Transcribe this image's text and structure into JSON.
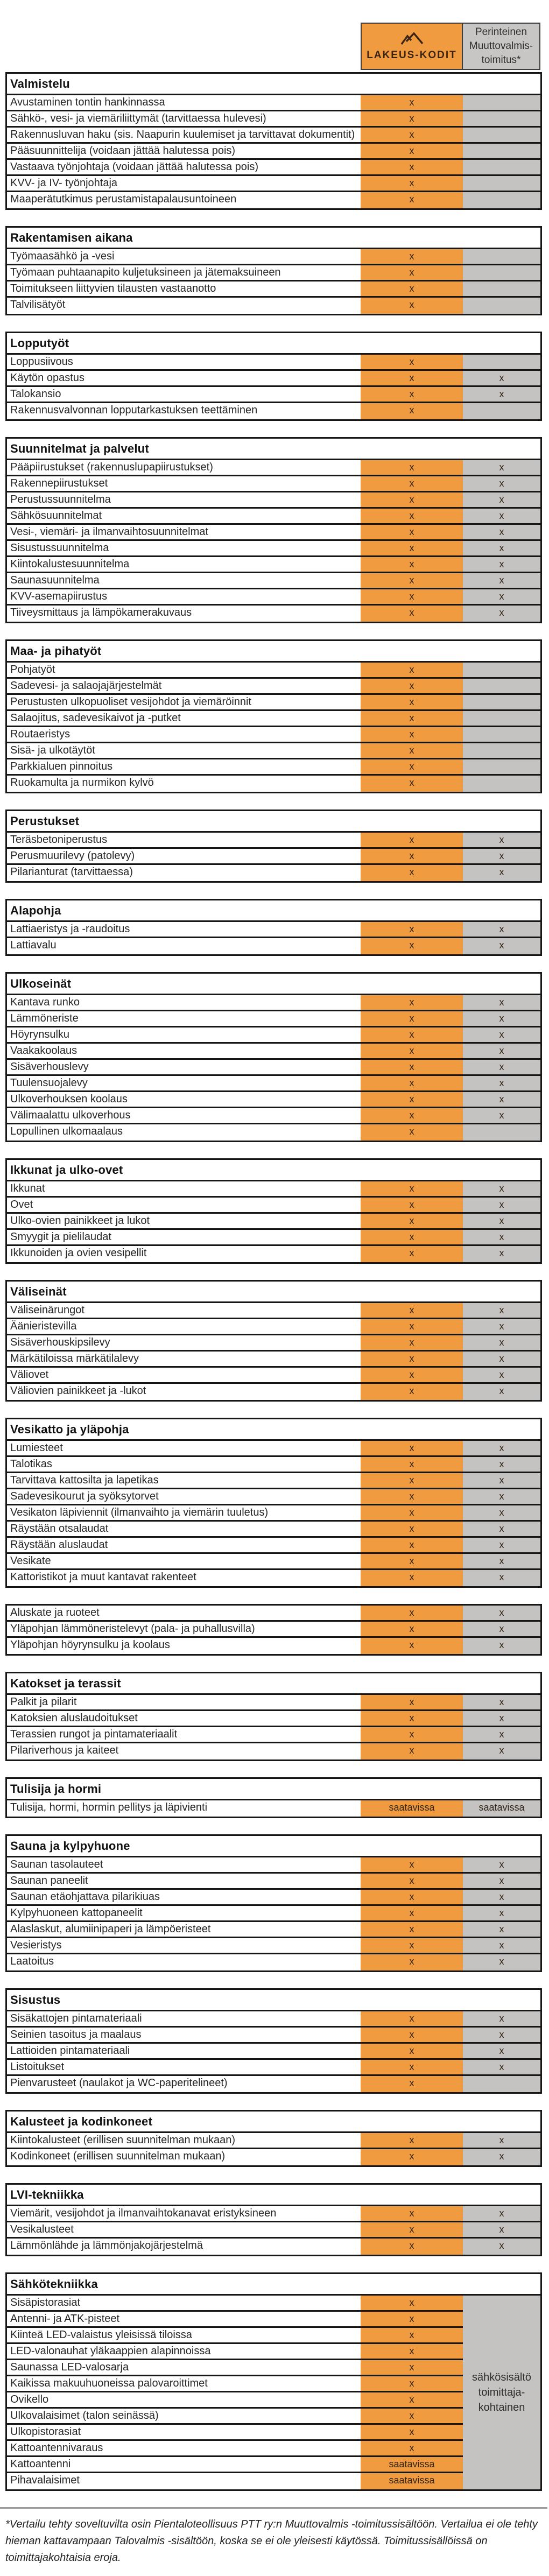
{
  "columns": {
    "brand": {
      "label": "LAKEUS-KODIT",
      "icon": "mountain-logo"
    },
    "traditional": {
      "label": "Perinteinen\nMuuttovalmis-\ntoimitus*"
    }
  },
  "legend": {
    "included_mark": "x",
    "available_mark": "saatavissa"
  },
  "colors": {
    "orange": "#F09B40",
    "gray": "#C4C3C1",
    "border": "#161616",
    "logo_brown": "#3A2414"
  },
  "electrical_note": "sähkösisältö\ntoimittaja-\nkohtainen",
  "footnote": "*Vertailu tehty soveltuvilta osin Pientaloteollisuus PTT ry:n Muuttovalmis -toimitussisältöön. Vertailua ei ole tehty hieman kattavampaan Talovalmis -sisältöön, koska se ei ole yleisesti käytössä. Toimitussisällöissä on toimittajakohtaisia eroja.",
  "sections": [
    {
      "title": "Valmistelu",
      "rows": [
        {
          "label": "Avustaminen tontin hankinnassa",
          "lakeus": "x",
          "perinteinen": ""
        },
        {
          "label": "Sähkö-, vesi- ja viemäriliittymät (tarvittaessa hulevesi)",
          "lakeus": "x",
          "perinteinen": ""
        },
        {
          "label": "Rakennusluvan haku (sis. Naapurin kuulemiset ja tarvittavat dokumentit)",
          "lakeus": "x",
          "perinteinen": ""
        },
        {
          "label": "Pääsuunnittelija (voidaan jättää halutessa pois)",
          "lakeus": "x",
          "perinteinen": ""
        },
        {
          "label": "Vastaava työnjohtaja (voidaan jättää halutessa pois)",
          "lakeus": "x",
          "perinteinen": ""
        },
        {
          "label": "KVV- ja IV- työnjohtaja",
          "lakeus": "x",
          "perinteinen": ""
        },
        {
          "label": "Maaperätutkimus perustamistapalausuntoineen",
          "lakeus": "x",
          "perinteinen": ""
        }
      ]
    },
    {
      "title": "Rakentamisen aikana",
      "rows": [
        {
          "label": "Työmaasähkö ja -vesi",
          "lakeus": "x",
          "perinteinen": ""
        },
        {
          "label": "Työmaan puhtaanapito kuljetuksineen ja jätemaksuineen",
          "lakeus": "x",
          "perinteinen": ""
        },
        {
          "label": "Toimitukseen liittyvien tilausten vastaanotto",
          "lakeus": "x",
          "perinteinen": ""
        },
        {
          "label": "Talvilisätyöt",
          "lakeus": "x",
          "perinteinen": ""
        }
      ]
    },
    {
      "title": "Lopputyöt",
      "rows": [
        {
          "label": "Loppusiivous",
          "lakeus": "x",
          "perinteinen": ""
        },
        {
          "label": "Käytön opastus",
          "lakeus": "x",
          "perinteinen": "x"
        },
        {
          "label": "Talokansio",
          "lakeus": "x",
          "perinteinen": "x"
        },
        {
          "label": "Rakennusvalvonnan lopputarkastuksen teettäminen",
          "lakeus": "x",
          "perinteinen": ""
        }
      ]
    },
    {
      "title": "Suunnitelmat ja palvelut",
      "rows": [
        {
          "label": "Pääpiirustukset (rakennuslupapiirustukset)",
          "lakeus": "x",
          "perinteinen": "x"
        },
        {
          "label": "Rakennepiirustukset",
          "lakeus": "x",
          "perinteinen": "x"
        },
        {
          "label": "Perustussuunnitelma",
          "lakeus": "x",
          "perinteinen": "x"
        },
        {
          "label": "Sähkösuunnitelmat",
          "lakeus": "x",
          "perinteinen": "x"
        },
        {
          "label": "Vesi-, viemäri- ja ilmanvaihtosuunnitelmat",
          "lakeus": "x",
          "perinteinen": "x"
        },
        {
          "label": "Sisustussuunnitelma",
          "lakeus": "x",
          "perinteinen": "x"
        },
        {
          "label": "Kiintokalustesuunnitelma",
          "lakeus": "x",
          "perinteinen": "x"
        },
        {
          "label": "Saunasuunnitelma",
          "lakeus": "x",
          "perinteinen": "x"
        },
        {
          "label": "KVV-asemapiirustus",
          "lakeus": "x",
          "perinteinen": "x"
        },
        {
          "label": "Tiiveysmittaus ja lämpökamerakuvaus",
          "lakeus": "x",
          "perinteinen": "x"
        }
      ]
    },
    {
      "title": "Maa- ja pihatyöt",
      "rows": [
        {
          "label": "Pohjatyöt",
          "lakeus": "x",
          "perinteinen": ""
        },
        {
          "label": "Sadevesi- ja salaojajärjestelmät",
          "lakeus": "x",
          "perinteinen": ""
        },
        {
          "label": "Perustusten ulkopuoliset vesijohdot ja viemäröinnit",
          "lakeus": "x",
          "perinteinen": ""
        },
        {
          "label": "Salaojitus, sadevesikaivot ja -putket",
          "lakeus": "x",
          "perinteinen": ""
        },
        {
          "label": "Routaeristys",
          "lakeus": "x",
          "perinteinen": ""
        },
        {
          "label": "Sisä- ja ulkotäytöt",
          "lakeus": "x",
          "perinteinen": ""
        },
        {
          "label": "Parkkialuen pinnoitus",
          "lakeus": "x",
          "perinteinen": ""
        },
        {
          "label": "Ruokamulta ja nurmikon kylvö",
          "lakeus": "x",
          "perinteinen": ""
        }
      ]
    },
    {
      "title": "Perustukset",
      "rows": [
        {
          "label": "Teräsbetoniperustus",
          "lakeus": "x",
          "perinteinen": "x"
        },
        {
          "label": "Perusmuurilevy (patolevy)",
          "lakeus": "x",
          "perinteinen": "x"
        },
        {
          "label": "Pilarianturat (tarvittaessa)",
          "lakeus": "x",
          "perinteinen": "x"
        }
      ]
    },
    {
      "title": "Alapohja",
      "rows": [
        {
          "label": "Lattiaeristys ja -raudoitus",
          "lakeus": "x",
          "perinteinen": "x"
        },
        {
          "label": "Lattiavalu",
          "lakeus": "x",
          "perinteinen": "x"
        }
      ]
    },
    {
      "title": "Ulkoseinät",
      "rows": [
        {
          "label": "Kantava runko",
          "lakeus": "x",
          "perinteinen": "x"
        },
        {
          "label": "Lämmöneriste",
          "lakeus": "x",
          "perinteinen": "x"
        },
        {
          "label": "Höyrynsulku",
          "lakeus": "x",
          "perinteinen": "x"
        },
        {
          "label": "Vaakakoolaus",
          "lakeus": "x",
          "perinteinen": "x"
        },
        {
          "label": "Sisäverhouslevy",
          "lakeus": "x",
          "perinteinen": "x"
        },
        {
          "label": "Tuulensuojalevy",
          "lakeus": "x",
          "perinteinen": "x"
        },
        {
          "label": "Ulkoverhouksen koolaus",
          "lakeus": "x",
          "perinteinen": "x"
        },
        {
          "label": "Välimaalattu ulkoverhous",
          "lakeus": "x",
          "perinteinen": "x"
        },
        {
          "label": "Lopullinen ulkomaalaus",
          "lakeus": "x",
          "perinteinen": ""
        }
      ]
    },
    {
      "title": "Ikkunat ja ulko-ovet",
      "rows": [
        {
          "label": "Ikkunat",
          "lakeus": "x",
          "perinteinen": "x"
        },
        {
          "label": "Ovet",
          "lakeus": "x",
          "perinteinen": "x"
        },
        {
          "label": "Ulko-ovien painikkeet ja lukot",
          "lakeus": "x",
          "perinteinen": "x"
        },
        {
          "label": "Smyygit ja pielilaudat",
          "lakeus": "x",
          "perinteinen": "x"
        },
        {
          "label": "Ikkunoiden ja ovien vesipellit",
          "lakeus": "x",
          "perinteinen": "x"
        }
      ]
    },
    {
      "title": "Väliseinät",
      "rows": [
        {
          "label": "Väliseinärungot",
          "lakeus": "x",
          "perinteinen": "x"
        },
        {
          "label": "Äänieristevilla",
          "lakeus": "x",
          "perinteinen": "x"
        },
        {
          "label": "Sisäverhouskipsilevy",
          "lakeus": "x",
          "perinteinen": "x"
        },
        {
          "label": "Märkätiloissa märkätilalevy",
          "lakeus": "x",
          "perinteinen": "x"
        },
        {
          "label": "Väliovet",
          "lakeus": "x",
          "perinteinen": "x"
        },
        {
          "label": "Väliovien painikkeet ja -lukot",
          "lakeus": "x",
          "perinteinen": "x"
        }
      ]
    },
    {
      "title": "Vesikatto ja yläpohja",
      "rows": [
        {
          "label": "Lumiesteet",
          "lakeus": "x",
          "perinteinen": "x"
        },
        {
          "label": "Talotikas",
          "lakeus": "x",
          "perinteinen": "x"
        },
        {
          "label": "Tarvittava kattosilta ja lapetikas",
          "lakeus": "x",
          "perinteinen": "x"
        },
        {
          "label": "Sadevesikourut ja syöksytorvet",
          "lakeus": "x",
          "perinteinen": "x"
        },
        {
          "label": "Vesikaton läpiviennit (ilmanvaihto ja viemärin tuuletus)",
          "lakeus": "x",
          "perinteinen": "x"
        },
        {
          "label": "Räystään otsalaudat",
          "lakeus": "x",
          "perinteinen": "x"
        },
        {
          "label": "Räystään aluslaudat",
          "lakeus": "x",
          "perinteinen": "x"
        },
        {
          "label": "Vesikate",
          "lakeus": "x",
          "perinteinen": "x"
        },
        {
          "label": "Kattoristikot ja muut kantavat rakenteet",
          "lakeus": "x",
          "perinteinen": "x"
        }
      ]
    },
    {
      "title": null,
      "rows": [
        {
          "label": "Aluskate ja ruoteet",
          "lakeus": "x",
          "perinteinen": "x"
        },
        {
          "label": "Yläpohjan lämmöneristelevyt (pala- ja puhallusvilla)",
          "lakeus": "x",
          "perinteinen": "x"
        },
        {
          "label": "Yläpohjan höyrynsulku ja koolaus",
          "lakeus": "x",
          "perinteinen": "x"
        }
      ]
    },
    {
      "title": "Katokset ja terassit",
      "rows": [
        {
          "label": "Palkit ja pilarit",
          "lakeus": "x",
          "perinteinen": "x"
        },
        {
          "label": "Katoksien aluslaudoitukset",
          "lakeus": "x",
          "perinteinen": "x"
        },
        {
          "label": "Terassien rungot ja pintamateriaalit",
          "lakeus": "x",
          "perinteinen": "x"
        },
        {
          "label": "Pilariverhous ja kaiteet",
          "lakeus": "x",
          "perinteinen": "x"
        }
      ]
    },
    {
      "title": "Tulisija ja hormi",
      "rows": [
        {
          "label": "Tulisija, hormi, hormin pellitys ja läpivienti",
          "lakeus": "saatavissa",
          "perinteinen": "saatavissa"
        }
      ]
    },
    {
      "title": "Sauna ja kylpyhuone",
      "rows": [
        {
          "label": "Saunan tasolauteet",
          "lakeus": "x",
          "perinteinen": "x"
        },
        {
          "label": "Saunan paneelit",
          "lakeus": "x",
          "perinteinen": "x"
        },
        {
          "label": "Saunan etäohjattava pilarikiuas",
          "lakeus": "x",
          "perinteinen": "x"
        },
        {
          "label": "Kylpyhuoneen kattopaneelit",
          "lakeus": "x",
          "perinteinen": "x"
        },
        {
          "label": "Alaslaskut, alumiinipaperi ja lämpöeristeet",
          "lakeus": "x",
          "perinteinen": "x"
        },
        {
          "label": "Vesieristys",
          "lakeus": "x",
          "perinteinen": "x"
        },
        {
          "label": "Laatoitus",
          "lakeus": "x",
          "perinteinen": "x"
        }
      ]
    },
    {
      "title": "Sisustus",
      "rows": [
        {
          "label": "Sisäkattojen pintamateriaali",
          "lakeus": "x",
          "perinteinen": "x"
        },
        {
          "label": "Seinien tasoitus ja maalaus",
          "lakeus": "x",
          "perinteinen": "x"
        },
        {
          "label": "Lattioiden pintamateriaali",
          "lakeus": "x",
          "perinteinen": "x"
        },
        {
          "label": "Listoitukset",
          "lakeus": "x",
          "perinteinen": "x"
        },
        {
          "label": "Pienvarusteet (naulakot ja WC-paperitelineet)",
          "lakeus": "x",
          "perinteinen": ""
        }
      ]
    },
    {
      "title": "Kalusteet ja kodinkoneet",
      "rows": [
        {
          "label": "Kiintokalusteet (erillisen suunnitelman mukaan)",
          "lakeus": "x",
          "perinteinen": "x"
        },
        {
          "label": "Kodinkoneet (erillisen suunnitelman mukaan)",
          "lakeus": "x",
          "perinteinen": "x"
        }
      ]
    },
    {
      "title": "LVI-tekniikka",
      "rows": [
        {
          "label": "Viemärit, vesijohdot ja ilmanvaihtokanavat eristyksineen",
          "lakeus": "x",
          "perinteinen": "x"
        },
        {
          "label": "Vesikalusteet",
          "lakeus": "x",
          "perinteinen": "x"
        },
        {
          "label": "Lämmönlähde ja lämmönjakojärjestelmä",
          "lakeus": "x",
          "perinteinen": "x"
        }
      ]
    },
    {
      "title": "Sähkötekniikka",
      "merged_note": true,
      "rows": [
        {
          "label": "Sisäpistorasiat",
          "lakeus": "x"
        },
        {
          "label": "Antenni- ja ATK-pisteet",
          "lakeus": "x"
        },
        {
          "label": "Kiinteä LED-valaistus yleisissä tiloissa",
          "lakeus": "x"
        },
        {
          "label": "LED-valonauhat yläkaappien alapinnoissa",
          "lakeus": "x"
        },
        {
          "label": "Saunassa LED-valosarja",
          "lakeus": "x"
        },
        {
          "label": "Kaikissa makuuhuoneissa palovaroittimet",
          "lakeus": "x"
        },
        {
          "label": "Ovikello",
          "lakeus": "x"
        },
        {
          "label": "Ulkovalaisimet (talon seinässä)",
          "lakeus": "x"
        },
        {
          "label": "Ulkopistorasiat",
          "lakeus": "x"
        },
        {
          "label": "Kattoantennivaraus",
          "lakeus": "x"
        },
        {
          "label": "Kattoantenni",
          "lakeus": "saatavissa"
        },
        {
          "label": "Pihavalaisimet",
          "lakeus": "saatavissa"
        }
      ]
    }
  ]
}
